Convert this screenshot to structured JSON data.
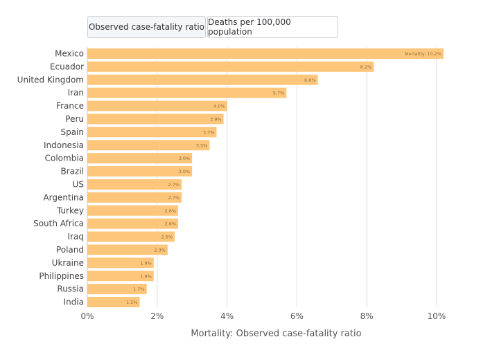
{
  "tabs": [
    {
      "label": "Observed case-fatality ratio",
      "active": true
    },
    {
      "label": "Deaths per 100,000 population",
      "active": false
    }
  ],
  "chart_data": {
    "type": "bar",
    "orientation": "horizontal",
    "categories": [
      "Mexico",
      "Ecuador",
      "United Kingdom",
      "Iran",
      "France",
      "Peru",
      "Spain",
      "Indonesia",
      "Colombia",
      "Brazil",
      "US",
      "Argentina",
      "Turkey",
      "South Africa",
      "Iraq",
      "Poland",
      "Ukraine",
      "Philippines",
      "Russia",
      "India"
    ],
    "values": [
      10.2,
      8.2,
      6.6,
      5.7,
      4.0,
      3.9,
      3.7,
      3.5,
      3.0,
      3.0,
      2.7,
      2.7,
      2.6,
      2.6,
      2.5,
      2.3,
      1.9,
      1.9,
      1.7,
      1.5
    ],
    "data_labels": [
      "Mortality: 10.2%",
      "8.2%",
      "6.6%",
      "5.7%",
      "4.0%",
      "3.9%",
      "3.7%",
      "3.5%",
      "3.0%",
      "3.0%",
      "2.7%",
      "2.7%",
      "2.6%",
      "2.6%",
      "2.5%",
      "2.3%",
      "1.9%",
      "1.9%",
      "1.7%",
      "1.5%"
    ],
    "xticks": [
      "0%",
      "2%",
      "4%",
      "6%",
      "8%",
      "10%"
    ],
    "xtick_values": [
      0,
      2,
      4,
      6,
      8,
      10
    ],
    "xlim": [
      0,
      10.5
    ],
    "xlabel": "Mortality: Observed case-fatality ratio",
    "ylabel": "",
    "title": "",
    "grid": "vertical",
    "bar_color": "#fdc67a"
  }
}
